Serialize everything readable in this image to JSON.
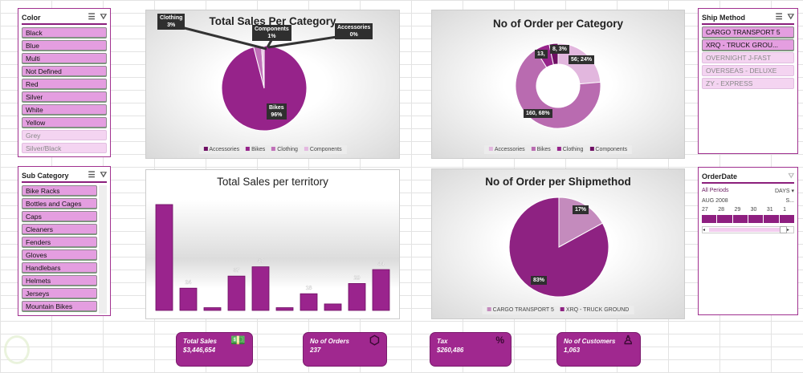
{
  "color_slicer": {
    "title": "Color",
    "items": [
      {
        "label": "Black",
        "selected": true
      },
      {
        "label": "Blue",
        "selected": true
      },
      {
        "label": "Multi",
        "selected": true
      },
      {
        "label": "Not Defined",
        "selected": true
      },
      {
        "label": "Red",
        "selected": true
      },
      {
        "label": "Silver",
        "selected": true
      },
      {
        "label": "White",
        "selected": true
      },
      {
        "label": "Yellow",
        "selected": true
      },
      {
        "label": "Grey",
        "selected": false
      },
      {
        "label": "Silver/Black",
        "selected": false
      }
    ]
  },
  "subcategory_slicer": {
    "title": "Sub Category",
    "items": [
      {
        "label": "Bike Racks"
      },
      {
        "label": "Bottles and Cages"
      },
      {
        "label": "Caps"
      },
      {
        "label": "Cleaners"
      },
      {
        "label": "Fenders"
      },
      {
        "label": "Gloves"
      },
      {
        "label": "Handlebars"
      },
      {
        "label": "Helmets"
      },
      {
        "label": "Jerseys"
      },
      {
        "label": "Mountain Bikes"
      }
    ]
  },
  "shipmethod_slicer": {
    "title": "Ship Method",
    "items": [
      {
        "label": "CARGO TRANSPORT 5",
        "selected": true
      },
      {
        "label": "XRQ - TRUCK GROU...",
        "selected": true
      },
      {
        "label": "OVERNIGHT J-FAST",
        "selected": false
      },
      {
        "label": "OVERSEAS - DELUXE",
        "selected": false
      },
      {
        "label": "ZY - EXPRESS",
        "selected": false
      }
    ]
  },
  "orderdate_timeline": {
    "title": "OrderDate",
    "all_periods": "All Periods",
    "granularity": "DAYS",
    "month": "AUG 2008",
    "next_month": "S...",
    "days": [
      "27",
      "28",
      "29",
      "30",
      "31",
      "1"
    ]
  },
  "chart_data": [
    {
      "type": "pie",
      "title": "Total Sales Per Category",
      "categories": [
        "Accessories",
        "Bikes",
        "Clothing",
        "Components"
      ],
      "values": [
        0,
        96,
        3,
        1
      ],
      "labels": [
        "Accessories\n0%",
        "Bikes\n96%",
        "Clothing\n3%",
        "Components\n1%"
      ],
      "colors": [
        "#6e0f63",
        "#96238a",
        "#c070b8",
        "#e4b8e0"
      ],
      "legend": "bottom"
    },
    {
      "type": "bar",
      "title": "Total Sales per territory",
      "values": [
        114,
        24,
        3,
        37,
        47,
        3,
        18,
        7,
        29,
        44
      ],
      "labels": [
        "",
        "24",
        "",
        "37",
        "47",
        "",
        "18",
        "",
        "29",
        "44"
      ],
      "color": "#9a248d"
    },
    {
      "type": "pie",
      "subtype": "doughnut",
      "title": "No of Order per Category",
      "categories": [
        "Accessories",
        "Bikes",
        "Clothing",
        "Components"
      ],
      "values": [
        56,
        160,
        13,
        8
      ],
      "labels": [
        "56; 24%",
        "160, 68%",
        "13,",
        "8, 3%"
      ],
      "colors": [
        "#e2b7de",
        "#b96bb0",
        "#96238a",
        "#6e0f63"
      ],
      "legend": "bottom"
    },
    {
      "type": "pie",
      "title": "No of Order per Shipmethod",
      "categories": [
        "CARGO TRANSPORT 5",
        "XRQ - TRUCK GROUND"
      ],
      "values": [
        17,
        83
      ],
      "labels": [
        "17%",
        "83%"
      ],
      "colors": [
        "#c48bbd",
        "#8e2282"
      ],
      "legend": "bottom"
    }
  ],
  "kpis": [
    {
      "label": "Total Sales",
      "value": "$3,446,654",
      "icon": "money-icon"
    },
    {
      "label": "No of Orders",
      "value": "237",
      "icon": "box-icon"
    },
    {
      "label": "Tax",
      "value": "$260,486",
      "icon": "money-bag-icon"
    },
    {
      "label": "No of Customers",
      "value": "1,063",
      "icon": "person-icon"
    }
  ]
}
